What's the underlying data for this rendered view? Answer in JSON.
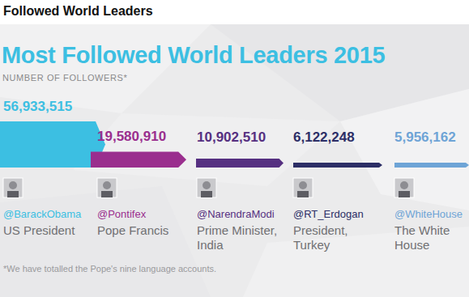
{
  "header": "Followed World Leaders",
  "chart_data": {
    "type": "bar",
    "title": "Most Followed World Leaders 2015",
    "subtitle": "NUMBER OF FOLLOWERS*",
    "categories": [
      "@BarackObama",
      "@Pontifex",
      "@NarendraModi",
      "@RT_Erdogan",
      "@WhiteHouse"
    ],
    "category_descriptions": [
      "US President",
      "Pope Francis",
      "Prime Minister, India",
      "President, Turkey",
      "The White House"
    ],
    "values": [
      56933515,
      19580910,
      10902510,
      6122248,
      5956162
    ],
    "value_labels": [
      "56,933,515",
      "19,580,910",
      "10,902,510",
      "6,122,248",
      "5,956,162"
    ],
    "colors": [
      "#3cbfe2",
      "#9a2e8e",
      "#563081",
      "#2c2e66",
      "#6ea4d6"
    ],
    "ylim": [
      0,
      60000000
    ],
    "data_labels": true,
    "tick_labels": false,
    "grid": false,
    "annotations": [
      "*We have totalled the Pope's nine language accounts."
    ]
  }
}
